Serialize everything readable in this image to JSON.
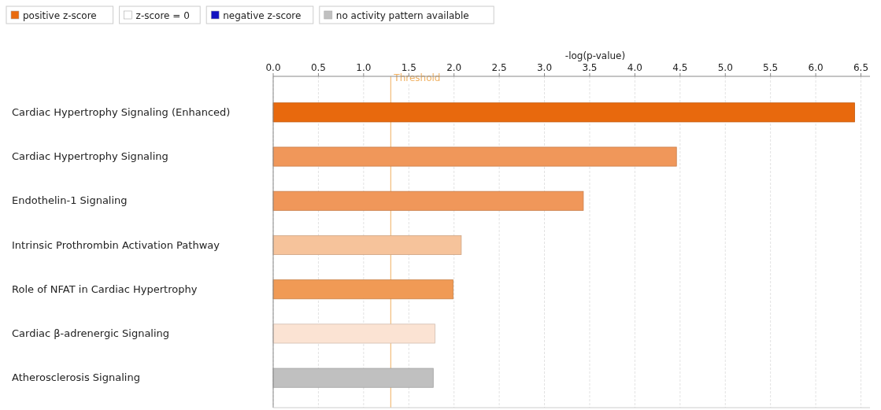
{
  "chart_data": {
    "type": "bar",
    "orientation": "horizontal",
    "xlabel": "-log(p-value)",
    "categories": [
      "Cardiac Hypertrophy Signaling (Enhanced)",
      "Cardiac Hypertrophy Signaling",
      "Endothelin-1 Signaling",
      "Intrinsic Prothrombin Activation Pathway",
      "Role of NFAT in Cardiac Hypertrophy",
      "Cardiac β-adrenergic Signaling",
      "Atherosclerosis Signaling"
    ],
    "series": [
      {
        "name": "positive z-score",
        "color": "#e8690d",
        "values": [
          6.43,
          4.46,
          3.43,
          2.08,
          1.99,
          1.79,
          null
        ],
        "colors": [
          "#e8690d",
          "#f0975a",
          "#f0975a",
          "#f6c39b",
          "#f09a55",
          "#fbe3d3",
          null
        ]
      },
      {
        "name": "z-score = 0",
        "color": "#ffffff",
        "values": [
          null,
          null,
          null,
          null,
          null,
          null,
          null
        ]
      },
      {
        "name": "negative z-score",
        "color": "#1010c0",
        "values": [
          null,
          null,
          null,
          null,
          null,
          null,
          null
        ]
      },
      {
        "name": "no activity pattern available",
        "color": "#c0c0c0",
        "values": [
          null,
          null,
          null,
          null,
          null,
          null,
          1.77
        ]
      }
    ],
    "xlim": [
      0,
      6.6
    ],
    "xticks": [
      {
        "value": 0,
        "label": "0.0"
      },
      {
        "value": 0.5,
        "label": "0.5"
      },
      {
        "value": 1,
        "label": "1.0"
      },
      {
        "value": 1.5,
        "label": "1.5"
      },
      {
        "value": 2,
        "label": "2.0"
      },
      {
        "value": 2.5,
        "label": "2.5"
      },
      {
        "value": 3,
        "label": "3.0"
      },
      {
        "value": 3.5,
        "label": "3.5"
      },
      {
        "value": 4,
        "label": "4.0"
      },
      {
        "value": 4.5,
        "label": "4.5"
      },
      {
        "value": 5,
        "label": "5.0"
      },
      {
        "value": 5.5,
        "label": "5.5"
      },
      {
        "value": 6,
        "label": "6.0"
      },
      {
        "value": 6.5,
        "label": "6.5"
      }
    ],
    "ref_lines": [
      {
        "axis": "x",
        "value": 1.3,
        "label": "Threshold",
        "color": "#f0b060"
      }
    ],
    "grid": "x",
    "legend": "top left"
  }
}
